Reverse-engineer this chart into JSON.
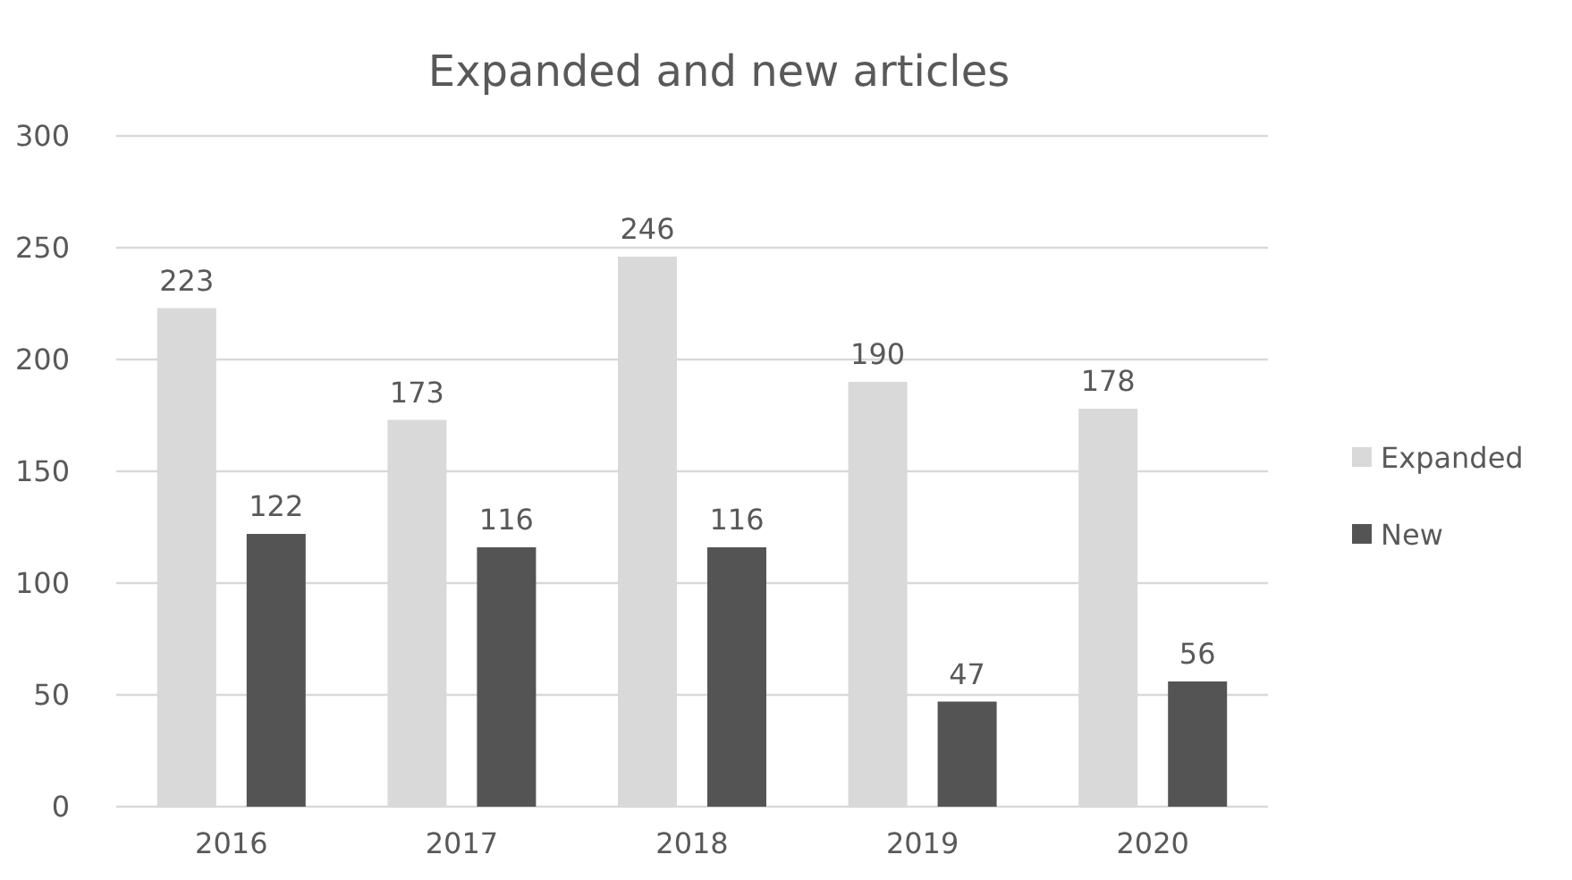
{
  "chart_data": {
    "type": "bar",
    "title": "Expanded and new articles",
    "categories": [
      "2016",
      "2017",
      "2018",
      "2019",
      "2020"
    ],
    "series": [
      {
        "name": "Expanded",
        "color": "#d9d9d9",
        "values": [
          223,
          173,
          246,
          190,
          178
        ]
      },
      {
        "name": "New",
        "color": "#545454",
        "values": [
          122,
          116,
          116,
          47,
          56
        ]
      }
    ],
    "ylim": [
      0,
      300
    ],
    "yticks": [
      0,
      50,
      100,
      150,
      200,
      250,
      300
    ],
    "grid": "y",
    "legend": "right",
    "data_labels": true
  }
}
